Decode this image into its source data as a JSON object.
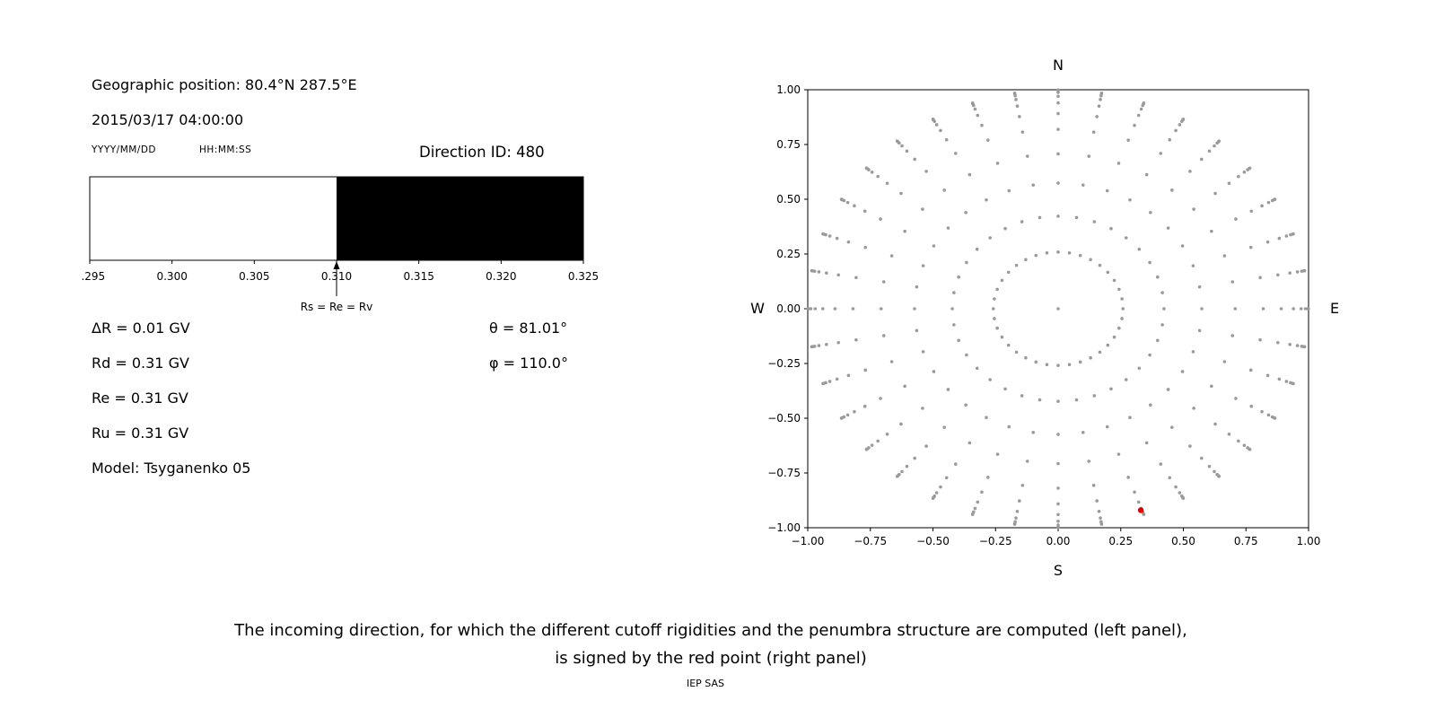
{
  "left_panel": {
    "geo_position": "Geographic position: 80.4°N 287.5°E",
    "datetime": "2015/03/17 04:00:00",
    "date_format_label": "YYYY/MM/DD",
    "time_format_label": "HH:MM:SS",
    "direction_id": "Direction ID: 480",
    "values": {
      "delta_r": "ΔR = 0.01 GV",
      "theta": "θ = 81.01°",
      "rd": "Rd = 0.31 GV",
      "phi": "φ = 110.0°",
      "re": "Re = 0.31 GV",
      "ru": "Ru = 0.31 GV",
      "model": "Model: Tsyganenko 05"
    }
  },
  "caption": {
    "line1": "The incoming direction, for which the different cutoff rigidities and the penumbra structure are computed (left panel),",
    "line2": "is signed by the red point (right panel)",
    "credit": "IEP SAS"
  },
  "chart_data": [
    {
      "type": "bar",
      "title": "",
      "xlabel": "",
      "x_range": [
        0.295,
        0.325
      ],
      "x_ticks": [
        "0.295",
        "0.300",
        "0.305",
        "0.310",
        "0.315",
        "0.320",
        "0.325"
      ],
      "segments": [
        {
          "from": 0.295,
          "to": 0.31,
          "color": "#ffffff"
        },
        {
          "from": 0.31,
          "to": 0.325,
          "color": "#000000"
        }
      ],
      "marker": {
        "x": 0.31,
        "label": "Rs = Re = Rv"
      }
    },
    {
      "type": "scatter",
      "title": "",
      "xlim": [
        -1,
        1
      ],
      "ylim": [
        -1,
        1
      ],
      "x_ticks": [
        "-1.00",
        "-0.75",
        "-0.50",
        "-0.25",
        "0.00",
        "0.25",
        "0.50",
        "0.75",
        "1.00"
      ],
      "y_ticks": [
        "1.00",
        "0.75",
        "0.50",
        "0.25",
        "0.00",
        "-0.25",
        "-0.50",
        "-0.75",
        "-1.00"
      ],
      "compass_labels": {
        "top": "N",
        "bottom": "S",
        "left": "W",
        "right": "E"
      },
      "direction_grid": {
        "color": "#9a9a9a",
        "azimuth_step_deg": 10,
        "zenith_angles_deg": [
          15,
          25,
          35,
          45,
          55,
          63,
          70,
          76,
          81,
          85,
          88
        ],
        "projection": "r = sin(zenith)",
        "center_point": true
      },
      "highlight_point": {
        "x": 0.33,
        "y": -0.92,
        "color": "#dd0000"
      }
    }
  ]
}
